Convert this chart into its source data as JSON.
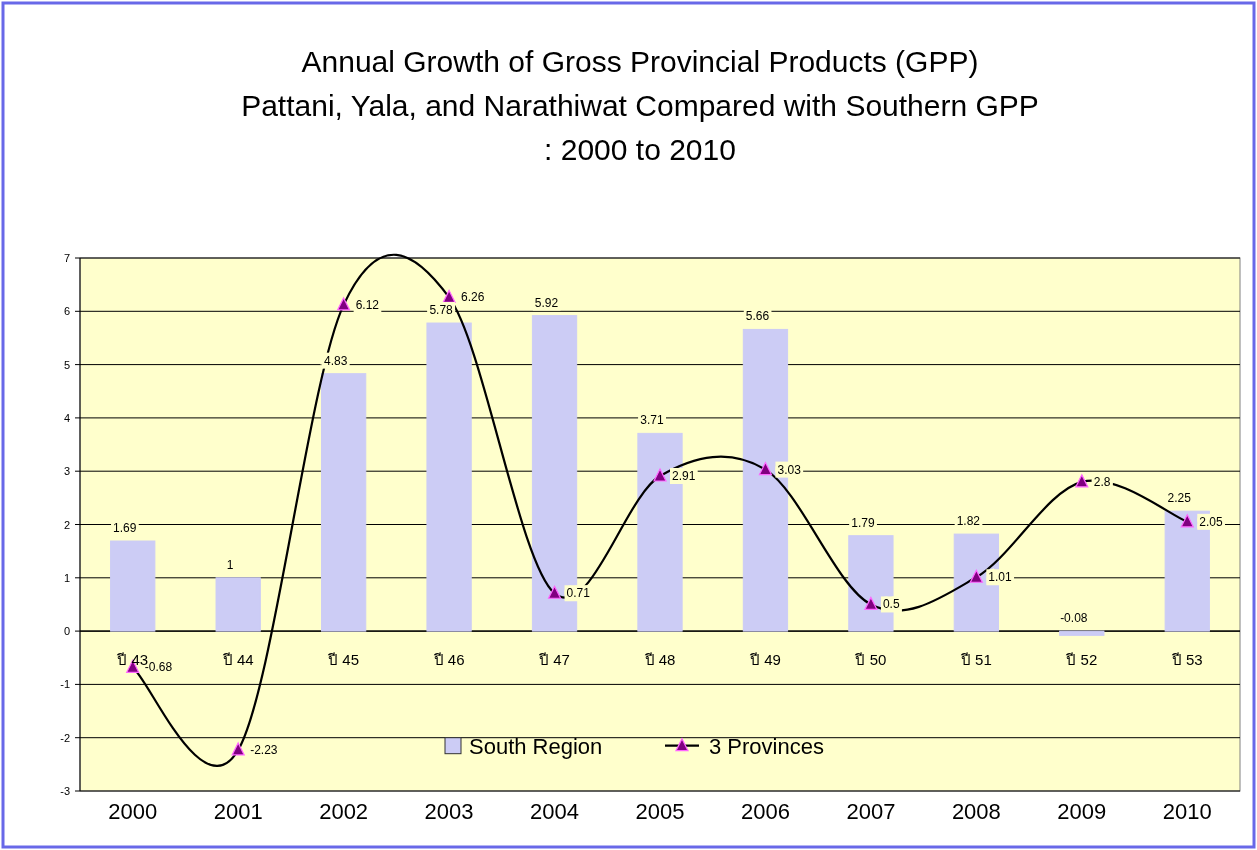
{
  "chart_data": {
    "type": "bar",
    "title": "Annual Growth of Gross Provincial Products (GPP)\nPattani, Yala, and Narathiwat Compared with Southern GPP\n: 2000 to 2010",
    "categories": [
      "2000",
      "2001",
      "2002",
      "2003",
      "2004",
      "2005",
      "2006",
      "2007",
      "2008",
      "2009",
      "2010"
    ],
    "series": [
      {
        "name": "South Region",
        "color": "#ccccf5",
        "values": [
          1.69,
          1,
          4.83,
          5.78,
          5.92,
          3.71,
          5.66,
          1.79,
          1.82,
          -0.08,
          2.25
        ]
      },
      {
        "name": "3 Provinces",
        "type": "line",
        "color": "#000000",
        "values": [
          -0.68,
          -2.23,
          6.12,
          6.26,
          0.71,
          2.91,
          3.03,
          0.5,
          1.01,
          2.8,
          2.05
        ]
      }
    ],
    "ylim": [
      -3,
      7
    ],
    "yticks": [
      -3,
      -2,
      -1,
      0,
      1,
      2,
      3,
      4,
      5,
      6,
      7
    ],
    "grid": "y",
    "legend": "bottom",
    "marker": "triangle",
    "data_labels": true,
    "annotations": [
      "ปี 43",
      "ปี 44",
      "ปี 45",
      "ปี 46",
      "ปี 47",
      "ปี 48",
      "ปี 49",
      "ปี 50",
      "ปี 51",
      "ปี 52",
      "ปี 53"
    ]
  }
}
